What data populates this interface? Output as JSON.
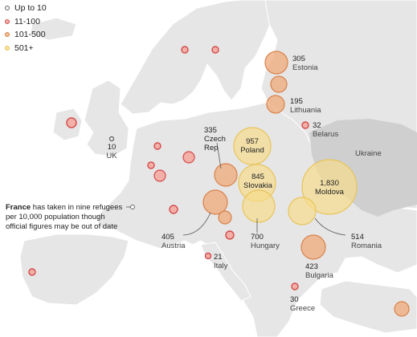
{
  "legend": [
    {
      "label": "Up to 10",
      "color": "#8a8a8a"
    },
    {
      "label": "11-100",
      "color": "#e07a7a"
    },
    {
      "label": "101-500",
      "color": "#e9a06b"
    },
    {
      "label": "501+",
      "color": "#f0d37a"
    }
  ],
  "colors": {
    "land": "#e6e6e6",
    "highlight_land": "#cfcfcf",
    "water": "#ffffff"
  },
  "labels": {
    "estonia": {
      "value": "305",
      "name": "Estonia"
    },
    "lithuania": {
      "value": "195",
      "name": "Lithuania"
    },
    "belarus": {
      "value": "32",
      "name": "Belarus"
    },
    "ukraine": {
      "name": "Ukraine"
    },
    "uk": {
      "value": "10",
      "name": "UK"
    },
    "czech": {
      "value": "335",
      "name": "Czech",
      "name2": "Rep"
    },
    "poland": {
      "value": "957",
      "name": "Poland"
    },
    "slovakia": {
      "value": "845",
      "name": "Slovakia"
    },
    "moldova": {
      "value": "1,830",
      "name": "Moldova"
    },
    "austria": {
      "value": "405",
      "name": "Austria"
    },
    "hungary": {
      "value": "700",
      "name": "Hungary"
    },
    "romania": {
      "value": "514",
      "name": "Romania"
    },
    "italy": {
      "value": "21",
      "name": "Italy"
    },
    "bulgaria": {
      "value": "423",
      "name": "Bulgaria"
    },
    "greece": {
      "value": "30",
      "name": "Greece"
    }
  },
  "note": {
    "bold": "France",
    "text": " has taken in nine refugees per 10,000 population though official figures may be out of date"
  }
}
